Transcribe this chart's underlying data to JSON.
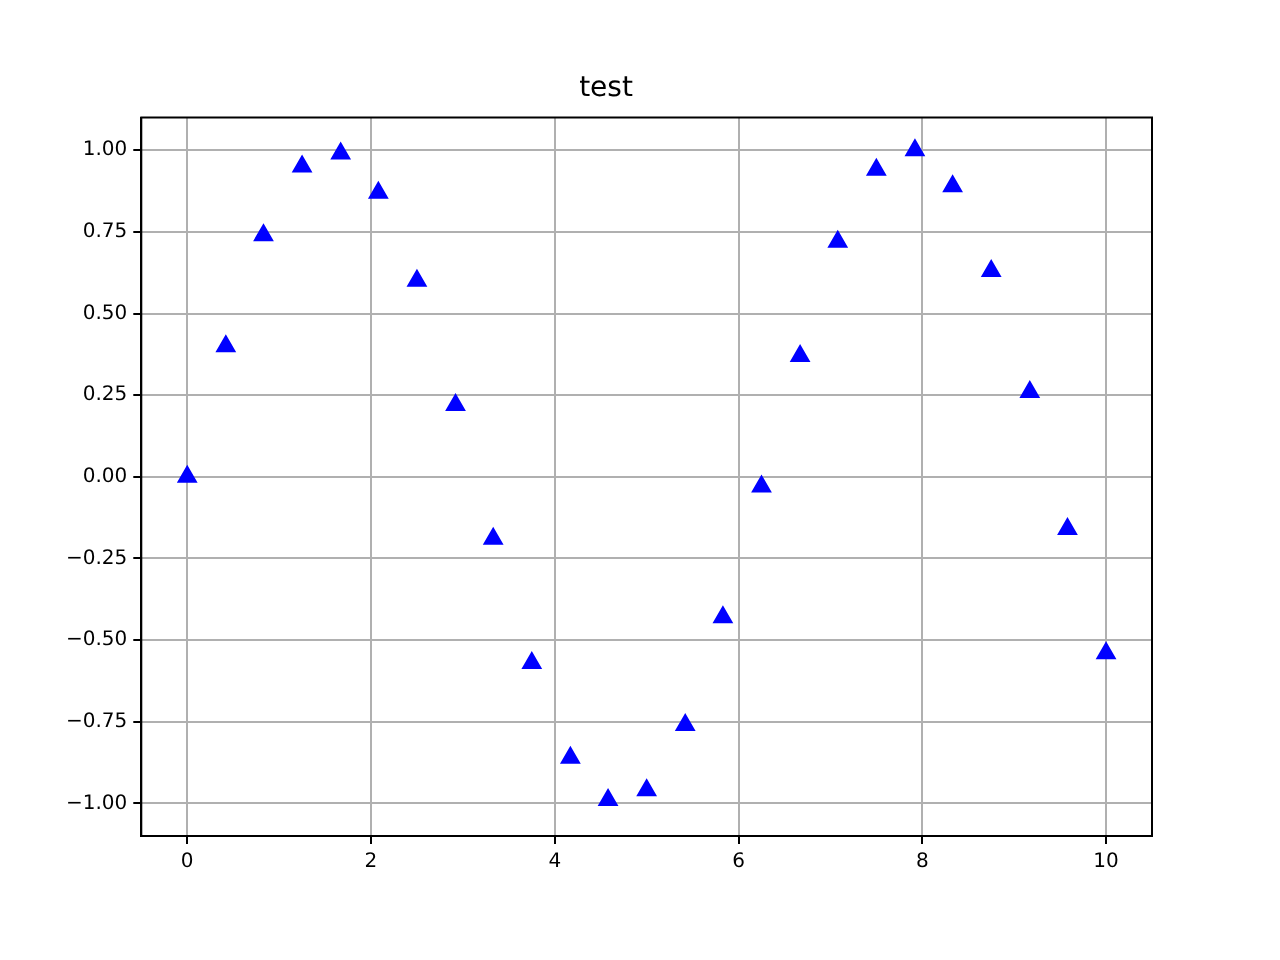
{
  "chart_data": {
    "type": "scatter",
    "title": "test",
    "x": [
      0,
      0.42,
      0.83,
      1.25,
      1.67,
      2.08,
      2.5,
      2.92,
      3.33,
      3.75,
      4.17,
      4.58,
      5.0,
      5.42,
      5.83,
      6.25,
      6.67,
      7.08,
      7.5,
      7.92,
      8.33,
      8.75,
      9.17,
      9.58,
      10
    ],
    "series": [
      {
        "color": "#0000ff",
        "values": [
          0,
          0.4,
          0.74,
          0.95,
          0.99,
          0.87,
          0.6,
          0.22,
          -0.19,
          -0.57,
          -0.86,
          -0.99,
          -0.96,
          -0.76,
          -0.43,
          -0.03,
          0.37,
          0.72,
          0.94,
          1.0,
          0.89,
          0.63,
          0.26,
          -0.16,
          -0.54
        ]
      }
    ],
    "xlim": [
      -0.5,
      10.5
    ],
    "xticks": [
      0,
      2,
      4,
      6,
      8,
      10
    ],
    "ylim": [
      -1.1,
      1.1
    ],
    "yticks": [
      {
        "value": -1,
        "label": "−1.00"
      },
      {
        "value": -0.75,
        "label": "−0.75"
      },
      {
        "value": -0.5,
        "label": "−0.50"
      },
      {
        "value": -0.25,
        "label": "−0.25"
      },
      {
        "value": 0,
        "label": "0.00"
      },
      {
        "value": 0.25,
        "label": "0.25"
      },
      {
        "value": 0.5,
        "label": "0.50"
      },
      {
        "value": 0.75,
        "label": "0.75"
      },
      {
        "value": 1,
        "label": "1.00"
      }
    ],
    "grid": true,
    "marker": "triangle",
    "legend": false
  }
}
